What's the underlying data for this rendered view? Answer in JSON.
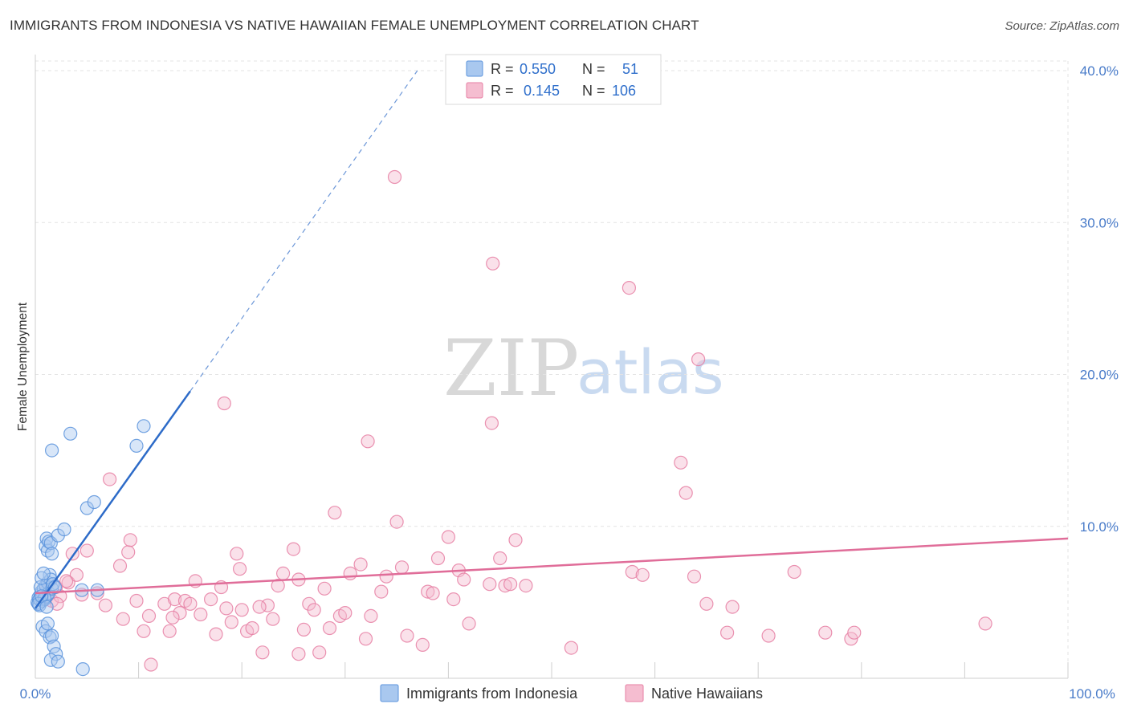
{
  "title": "IMMIGRANTS FROM INDONESIA VS NATIVE HAWAIIAN FEMALE UNEMPLOYMENT CORRELATION CHART",
  "source": "Source: ZipAtlas.com",
  "watermark": {
    "zip": "ZIP",
    "atlas": "atlas"
  },
  "colors": {
    "blue": "#5b93dc",
    "blue_fill": "#a9c8ef",
    "blue_line": "#2d6bc8",
    "pink": "#e67fa3",
    "pink_fill": "#f5bdd0",
    "pink_line": "#e06d99",
    "axis_text": "#4a7cc9",
    "grid": "#e3e3e3"
  },
  "legend_top": {
    "rows": [
      {
        "series": "Immigrants from Indonesia",
        "r_label": "R =",
        "r_value": "0.550",
        "n_label": "N =",
        "n_value": "51"
      },
      {
        "series": "Native Hawaiians",
        "r_label": "R =",
        "r_value": "0.145",
        "n_label": "N =",
        "n_value": "106"
      }
    ]
  },
  "chart_data": {
    "type": "scatter",
    "title": "IMMIGRANTS FROM INDONESIA VS NATIVE HAWAIIAN FEMALE UNEMPLOYMENT CORRELATION CHART",
    "xlabel": "",
    "ylabel": "Female Unemployment",
    "xlim": [
      0,
      100
    ],
    "ylim": [
      0,
      42
    ],
    "x_tick_labels": [
      "0.0%",
      "100.0%"
    ],
    "y_ticks": [
      10,
      20,
      30,
      40
    ],
    "y_tick_labels": [
      "10.0%",
      "20.0%",
      "30.0%",
      "40.0%"
    ],
    "grid": true,
    "legend_position": "bottom-center",
    "series": [
      {
        "name": "Immigrants from Indonesia",
        "R": 0.55,
        "N": 51,
        "trend": {
          "x0": 0.0,
          "y0": 4.6,
          "x1": 15.0,
          "y1": 18.9,
          "dashed_to_x": 37.0,
          "dashed_to_y": 40.0
        },
        "points": [
          [
            0.2,
            5.0
          ],
          [
            0.3,
            5.3
          ],
          [
            0.4,
            4.8
          ],
          [
            0.5,
            5.5
          ],
          [
            0.6,
            5.7
          ],
          [
            0.7,
            5.1
          ],
          [
            0.8,
            5.9
          ],
          [
            0.9,
            5.2
          ],
          [
            1.0,
            6.1
          ],
          [
            1.1,
            5.4
          ],
          [
            1.2,
            6.3
          ],
          [
            1.3,
            5.6
          ],
          [
            1.4,
            6.8
          ],
          [
            1.5,
            6.5
          ],
          [
            1.6,
            5.9
          ],
          [
            1.7,
            6.2
          ],
          [
            0.4,
            5.2
          ],
          [
            0.5,
            6.0
          ],
          [
            0.6,
            6.6
          ],
          [
            0.9,
            5.3
          ],
          [
            1.0,
            8.7
          ],
          [
            1.1,
            9.2
          ],
          [
            1.2,
            8.4
          ],
          [
            1.3,
            9.0
          ],
          [
            1.5,
            8.9
          ],
          [
            1.6,
            8.2
          ],
          [
            2.2,
            9.4
          ],
          [
            2.8,
            9.8
          ],
          [
            0.7,
            3.4
          ],
          [
            1.0,
            3.1
          ],
          [
            1.2,
            3.6
          ],
          [
            1.4,
            2.7
          ],
          [
            1.6,
            2.8
          ],
          [
            1.8,
            2.1
          ],
          [
            2.0,
            1.6
          ],
          [
            1.5,
            1.2
          ],
          [
            2.2,
            1.1
          ],
          [
            4.6,
            0.6
          ],
          [
            1.6,
            15.0
          ],
          [
            3.4,
            16.1
          ],
          [
            5.0,
            11.2
          ],
          [
            5.7,
            11.6
          ],
          [
            4.5,
            5.8
          ],
          [
            6.0,
            5.8
          ],
          [
            9.8,
            15.3
          ],
          [
            10.5,
            16.6
          ],
          [
            0.3,
            4.9
          ],
          [
            0.8,
            6.9
          ],
          [
            1.9,
            6.0
          ],
          [
            0.6,
            5.4
          ],
          [
            1.1,
            4.7
          ]
        ]
      },
      {
        "name": "Native Hawaiians",
        "R": 0.145,
        "N": 106,
        "trend": {
          "x0": 0.0,
          "y0": 5.6,
          "x1": 100.0,
          "y1": 9.2
        },
        "points": [
          [
            0.6,
            5.3
          ],
          [
            1.0,
            5.7
          ],
          [
            1.6,
            5.1
          ],
          [
            2.0,
            6.0
          ],
          [
            2.4,
            5.4
          ],
          [
            3.2,
            6.3
          ],
          [
            3.6,
            8.2
          ],
          [
            4.0,
            6.8
          ],
          [
            4.5,
            5.5
          ],
          [
            5.0,
            8.4
          ],
          [
            6.0,
            5.6
          ],
          [
            6.8,
            4.8
          ],
          [
            7.2,
            13.1
          ],
          [
            8.2,
            7.4
          ],
          [
            8.5,
            3.9
          ],
          [
            9.0,
            8.3
          ],
          [
            9.2,
            9.1
          ],
          [
            9.8,
            5.1
          ],
          [
            10.5,
            3.1
          ],
          [
            11.0,
            4.1
          ],
          [
            11.2,
            0.9
          ],
          [
            12.5,
            4.9
          ],
          [
            13.0,
            3.1
          ],
          [
            13.5,
            5.2
          ],
          [
            14.0,
            4.3
          ],
          [
            14.5,
            5.1
          ],
          [
            15.0,
            4.9
          ],
          [
            15.5,
            6.4
          ],
          [
            16.0,
            4.2
          ],
          [
            17.0,
            5.2
          ],
          [
            17.5,
            2.9
          ],
          [
            18.0,
            6.0
          ],
          [
            18.5,
            4.6
          ],
          [
            19.0,
            3.7
          ],
          [
            19.5,
            8.2
          ],
          [
            19.8,
            7.2
          ],
          [
            20.0,
            4.5
          ],
          [
            20.5,
            3.1
          ],
          [
            21.0,
            3.3
          ],
          [
            22.0,
            1.7
          ],
          [
            22.5,
            4.8
          ],
          [
            23.0,
            3.9
          ],
          [
            23.5,
            6.1
          ],
          [
            24.0,
            6.9
          ],
          [
            25.0,
            8.5
          ],
          [
            25.5,
            6.5
          ],
          [
            26.0,
            3.2
          ],
          [
            26.5,
            4.9
          ],
          [
            27.0,
            4.5
          ],
          [
            27.5,
            1.7
          ],
          [
            28.0,
            5.9
          ],
          [
            28.5,
            3.3
          ],
          [
            29.0,
            10.9
          ],
          [
            29.5,
            4.1
          ],
          [
            30.0,
            4.3
          ],
          [
            30.5,
            6.9
          ],
          [
            31.5,
            7.5
          ],
          [
            32.0,
            2.6
          ],
          [
            32.5,
            4.1
          ],
          [
            33.5,
            5.7
          ],
          [
            34.0,
            6.7
          ],
          [
            35.0,
            10.3
          ],
          [
            35.5,
            7.3
          ],
          [
            36.0,
            2.8
          ],
          [
            37.5,
            2.2
          ],
          [
            38.0,
            5.7
          ],
          [
            38.5,
            5.6
          ],
          [
            39.0,
            7.9
          ],
          [
            40.0,
            9.3
          ],
          [
            40.5,
            5.2
          ],
          [
            41.0,
            7.1
          ],
          [
            41.5,
            6.5
          ],
          [
            42.0,
            3.6
          ],
          [
            44.0,
            6.2
          ],
          [
            45.0,
            7.9
          ],
          [
            45.5,
            6.1
          ],
          [
            46.0,
            6.2
          ],
          [
            46.5,
            9.1
          ],
          [
            47.5,
            6.1
          ],
          [
            18.3,
            18.1
          ],
          [
            32.2,
            15.6
          ],
          [
            44.2,
            16.8
          ],
          [
            44.3,
            27.3
          ],
          [
            34.8,
            33.0
          ],
          [
            57.5,
            25.7
          ],
          [
            64.2,
            21.0
          ],
          [
            62.5,
            14.2
          ],
          [
            63.0,
            12.2
          ],
          [
            57.8,
            7.0
          ],
          [
            58.8,
            6.8
          ],
          [
            63.8,
            6.7
          ],
          [
            65.0,
            4.9
          ],
          [
            67.0,
            3.0
          ],
          [
            67.5,
            4.7
          ],
          [
            71.0,
            2.8
          ],
          [
            73.5,
            7.0
          ],
          [
            76.5,
            3.0
          ],
          [
            79.0,
            2.6
          ],
          [
            79.3,
            3.0
          ],
          [
            92.0,
            3.6
          ],
          [
            51.9,
            2.0
          ],
          [
            13.3,
            4.0
          ],
          [
            21.7,
            4.7
          ],
          [
            25.5,
            1.6
          ],
          [
            3.0,
            6.4
          ],
          [
            2.1,
            4.9
          ]
        ]
      }
    ]
  }
}
